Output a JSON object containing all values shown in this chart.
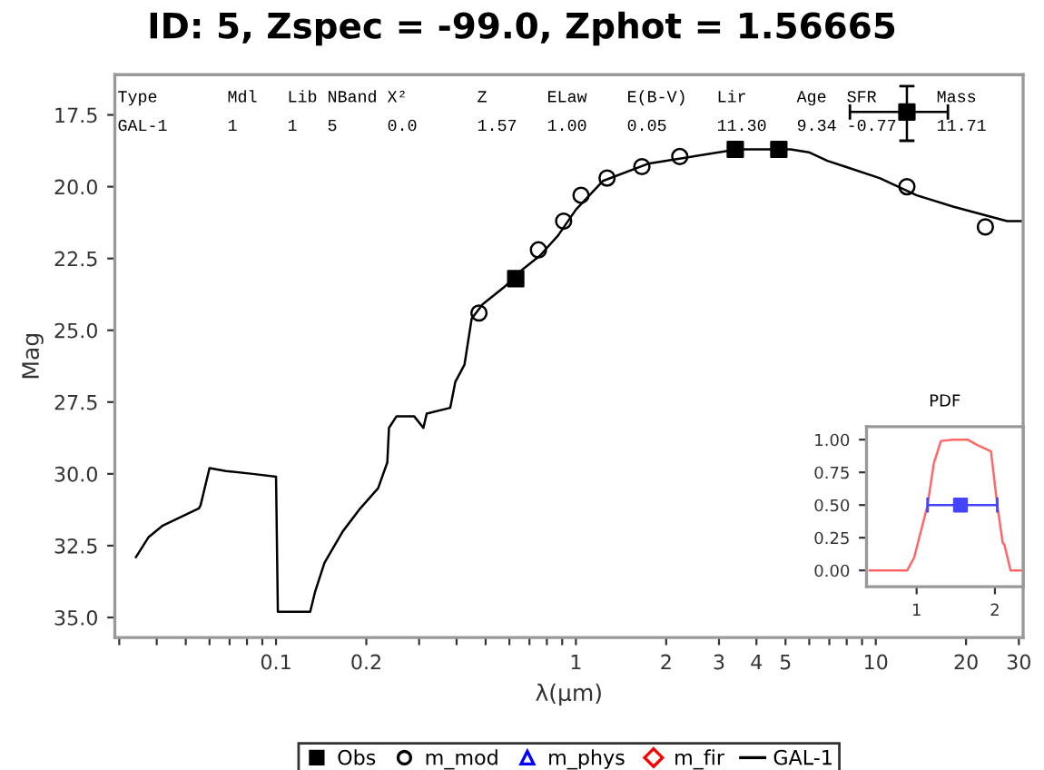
{
  "chart_data": [
    {
      "type": "line",
      "title": "ID: 5, Zspec = -99.0, Zphot = 1.56665",
      "xlabel": "λ(μm)",
      "ylabel": "Mag",
      "log": "x",
      "legend": "bottom",
      "grid": false,
      "xlim": [
        0.029,
        31
      ],
      "ylim": [
        35.7,
        16.1
      ],
      "xticks": [
        {
          "value": 0.03,
          "label": null
        },
        {
          "value": 0.04,
          "label": null
        },
        {
          "value": 0.05,
          "label": null
        },
        {
          "value": 0.06,
          "label": null
        },
        {
          "value": 0.07,
          "label": null
        },
        {
          "value": 0.08,
          "label": null
        },
        {
          "value": 0.09,
          "label": null
        },
        {
          "value": 0.1,
          "label": "0.1"
        },
        {
          "value": 0.2,
          "label": "0.2"
        },
        {
          "value": 0.3,
          "label": null
        },
        {
          "value": 0.4,
          "label": null
        },
        {
          "value": 0.5,
          "label": null
        },
        {
          "value": 0.6,
          "label": null
        },
        {
          "value": 0.7,
          "label": null
        },
        {
          "value": 0.8,
          "label": null
        },
        {
          "value": 0.9,
          "label": null
        },
        {
          "value": 1,
          "label": "1"
        },
        {
          "value": 2,
          "label": "2"
        },
        {
          "value": 3,
          "label": "3"
        },
        {
          "value": 4,
          "label": "4"
        },
        {
          "value": 5,
          "label": "5"
        },
        {
          "value": 6,
          "label": null
        },
        {
          "value": 7,
          "label": null
        },
        {
          "value": 8,
          "label": null
        },
        {
          "value": 9,
          "label": null
        },
        {
          "value": 10,
          "label": "10"
        },
        {
          "value": 20,
          "label": "20"
        },
        {
          "value": 30,
          "label": "30"
        }
      ],
      "yticks": [
        {
          "value": 17.5,
          "label": "17.5"
        },
        {
          "value": 20,
          "label": "20.0"
        },
        {
          "value": 22.5,
          "label": "22.5"
        },
        {
          "value": 25,
          "label": "25.0"
        },
        {
          "value": 27.5,
          "label": "27.5"
        },
        {
          "value": 30,
          "label": "30.0"
        },
        {
          "value": 32.5,
          "label": "32.5"
        },
        {
          "value": 35,
          "label": "35.0"
        }
      ],
      "annotations": [
        "Type       Mdl   Lib NBand X²       Z      ELaw    E(B-V)   Lir     Age  SFR      Mass",
        "GAL-1      1     1   5     0.0      1.57   1.00    0.05     11.30   9.34 -0.77    11.71"
      ],
      "series": [
        {
          "name": "Obs",
          "type": "scatter",
          "marker": "square",
          "color": "#000000",
          "x": [
            0.63,
            3.4,
            4.75,
            12.7
          ],
          "values": [
            23.2,
            18.7,
            18.7,
            17.4
          ],
          "errors": [
            null,
            null,
            null,
            [
              16.5,
              18.4
            ]
          ],
          "xerrors": [
            null,
            null,
            null,
            [
              8.2,
              17.4
            ]
          ]
        },
        {
          "name": "m_mod",
          "type": "scatter",
          "marker": "circle",
          "color": "#000000",
          "x": [
            0.475,
            0.75,
            0.91,
            1.04,
            1.27,
            1.66,
            2.22,
            12.7,
            23.2
          ],
          "values": [
            24.4,
            22.2,
            21.2,
            20.3,
            19.7,
            19.3,
            18.95,
            20.0,
            21.4
          ]
        },
        {
          "name": "m_phys",
          "type": "scatter",
          "marker": "triangle",
          "color": "#0000ff"
        },
        {
          "name": "m_fir",
          "type": "scatter",
          "marker": "diamond",
          "color": "#ff0000"
        },
        {
          "name": "GAL-1",
          "color": "#000000",
          "x": [
            0.0341,
            0.0376,
            0.0419,
            0.0553,
            0.056,
            0.06,
            0.068,
            0.0836,
            0.1,
            0.1014,
            0.13,
            0.135,
            0.145,
            0.167,
            0.191,
            0.219,
            0.235,
            0.238,
            0.252,
            0.289,
            0.31,
            0.318,
            0.381,
            0.396,
            0.425,
            0.449,
            0.488,
            0.576,
            0.661,
            0.759,
            0.872,
            1.0,
            1.23,
            1.74,
            2.29,
            3.45,
            5.2,
            5.98,
            6.9,
            7.9,
            10.3,
            13.7,
            18.2,
            27.4,
            30.5
          ],
          "values": [
            32.9,
            32.2,
            31.8,
            31.2,
            31.1,
            29.8,
            29.9,
            30.0,
            30.1,
            34.8,
            34.8,
            34.1,
            33.1,
            32.0,
            31.2,
            30.5,
            29.6,
            28.4,
            28.0,
            28.0,
            28.4,
            27.9,
            27.7,
            26.8,
            26.2,
            24.6,
            24.1,
            23.5,
            22.9,
            22.4,
            21.7,
            20.8,
            19.8,
            19.2,
            19.0,
            18.7,
            18.7,
            18.8,
            19.1,
            19.3,
            19.7,
            20.3,
            20.7,
            21.2,
            21.2
          ]
        }
      ]
    },
    {
      "type": "line",
      "title": "PDF",
      "xlim": [
        0.36,
        2.36
      ],
      "ylim": [
        -0.125,
        1.1
      ],
      "xticks": [
        1,
        2
      ],
      "yticks": [
        {
          "value": 0,
          "label": "0.00"
        },
        {
          "value": 0.25,
          "label": "0.25"
        },
        {
          "value": 0.5,
          "label": "0.50"
        },
        {
          "value": 0.75,
          "label": "0.75"
        },
        {
          "value": 1,
          "label": "1.00"
        }
      ],
      "series": [
        {
          "color": "#ff6666",
          "x": [
            0.4,
            0.88,
            0.97,
            1.14,
            1.22,
            1.31,
            1.46,
            1.65,
            1.77,
            1.95,
            2.03,
            2.1,
            2.12,
            2.2,
            2.36
          ],
          "values": [
            0,
            0,
            0.1,
            0.5,
            0.82,
            0.99,
            1.0,
            1.0,
            0.96,
            0.91,
            0.5,
            0.21,
            0.2,
            0,
            0
          ]
        },
        {
          "type": "scatter",
          "marker": "square",
          "color": "#4444ff",
          "x": [
            1.56
          ],
          "values": [
            0.5
          ],
          "xerrors": [
            [
              1.14,
              2.03
            ]
          ]
        }
      ]
    }
  ]
}
